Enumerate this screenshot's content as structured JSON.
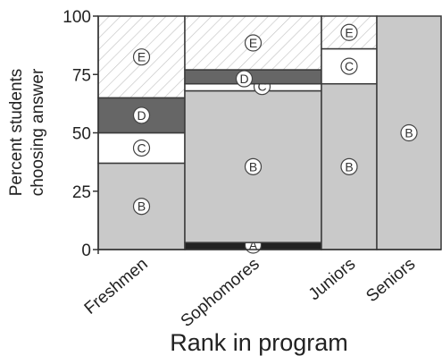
{
  "chart_data": {
    "type": "bar",
    "stacked": true,
    "variable_width": true,
    "categories": [
      "Freshmen",
      "Sophomores",
      "Juniors",
      "Seniors"
    ],
    "category_widths": [
      97,
      153,
      62,
      72
    ],
    "series": [
      {
        "name": "A",
        "values": [
          0,
          3,
          0,
          0
        ]
      },
      {
        "name": "B",
        "values": [
          37,
          65,
          71,
          100
        ]
      },
      {
        "name": "C",
        "values": [
          13,
          3,
          15,
          0
        ]
      },
      {
        "name": "D",
        "values": [
          15,
          6,
          0,
          0
        ]
      },
      {
        "name": "E",
        "values": [
          35,
          23,
          14,
          0
        ]
      }
    ],
    "series_styles": {
      "A": {
        "fill": "#222222",
        "pattern": "solid",
        "label_fill": "#ffffff",
        "label_color": "#333333"
      },
      "B": {
        "fill": "#c9c9c9",
        "pattern": "solid",
        "label_fill": "#ffffff",
        "label_color": "#333333"
      },
      "C": {
        "fill": "#ffffff",
        "pattern": "solid",
        "label_fill": "#ffffff",
        "label_color": "#333333"
      },
      "D": {
        "fill": "#666666",
        "pattern": "solid",
        "label_fill": "#ffffff",
        "label_color": "#333333"
      },
      "E": {
        "fill": "#ffffff",
        "pattern": "hatch",
        "label_fill": "#ffffff",
        "label_color": "#333333"
      }
    },
    "xlabel": "Rank in program",
    "ylabel": [
      "Percent students",
      "choosing answer"
    ],
    "ylim": [
      0,
      100
    ],
    "yticks": [
      0,
      25,
      50,
      75,
      100
    ],
    "grid": false,
    "legend": "none"
  }
}
